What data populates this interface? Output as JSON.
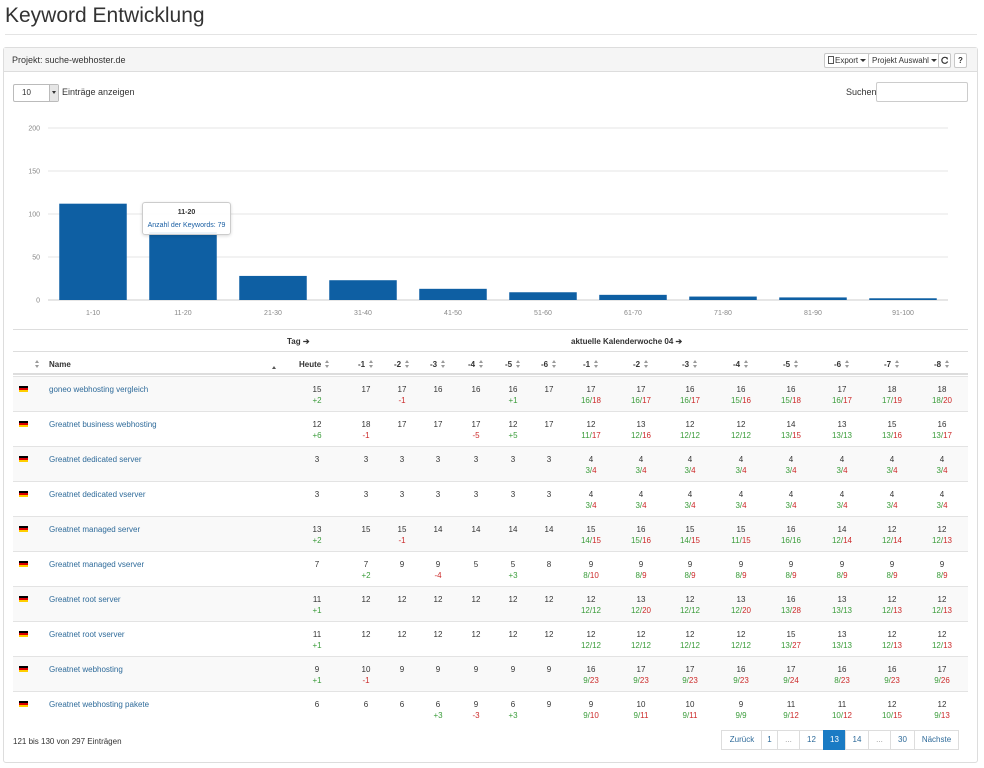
{
  "page": {
    "title": "Keyword Entwicklung"
  },
  "panel": {
    "project": "Projekt: suche-webhoster.de",
    "export_label": "Export",
    "project_select_label": "Projekt Auswahl",
    "refresh_icon": "refresh-icon",
    "help_label": "?"
  },
  "controls": {
    "length_value": "10",
    "length_label": "Einträge anzeigen",
    "search_label": "Suchen",
    "search_placeholder": ""
  },
  "colors": {
    "bar": "#0e5fa3",
    "positive": "#3a9c3a",
    "negative": "#cc2a2a",
    "link": "#2f6b9a",
    "active_page": "#1a7bc4"
  },
  "chart_data": {
    "type": "bar",
    "categories": [
      "1-10",
      "11-20",
      "21-30",
      "31-40",
      "41-50",
      "51-60",
      "61-70",
      "71-80",
      "81-90",
      "91-100"
    ],
    "values": [
      112,
      79,
      28,
      23,
      13,
      9,
      6,
      4,
      3,
      2
    ],
    "yticks": [
      0,
      50,
      100,
      150,
      200
    ],
    "ylim": [
      0,
      200
    ],
    "tooltip": {
      "category": "11-20",
      "label": "Anzahl der Keywords: 79"
    }
  },
  "table": {
    "group_day": "Tag",
    "group_week": "aktuelle Kalenderwoche 04",
    "headers": {
      "name": "Name",
      "today": "Heute",
      "days": [
        "-1",
        "-2",
        "-3",
        "-4",
        "-5",
        "-6"
      ],
      "weeks": [
        "-1",
        "-2",
        "-3",
        "-4",
        "-5",
        "-6",
        "-7",
        "-8"
      ]
    },
    "rows": [
      {
        "name": "goneo webhosting vergleich",
        "today": [
          "15",
          "+2"
        ],
        "days": [
          [
            "17",
            ""
          ],
          [
            "17",
            "-1"
          ],
          [
            "16",
            ""
          ],
          [
            "16",
            ""
          ],
          [
            "16",
            "+1"
          ],
          [
            "17",
            ""
          ]
        ],
        "weeks": [
          [
            "17",
            "16/18"
          ],
          [
            "17",
            "16/17"
          ],
          [
            "16",
            "16/17"
          ],
          [
            "16",
            "15/16"
          ],
          [
            "16",
            "15/18"
          ],
          [
            "17",
            "16/17"
          ],
          [
            "18",
            "17/19"
          ],
          [
            "18",
            "18/20"
          ]
        ]
      },
      {
        "name": "Greatnet business webhosting",
        "today": [
          "12",
          "+6"
        ],
        "days": [
          [
            "18",
            "-1"
          ],
          [
            "17",
            ""
          ],
          [
            "17",
            ""
          ],
          [
            "17",
            "-5"
          ],
          [
            "12",
            "+5"
          ],
          [
            "17",
            ""
          ]
        ],
        "weeks": [
          [
            "12",
            "11/17"
          ],
          [
            "13",
            "12/16"
          ],
          [
            "12",
            "12/12"
          ],
          [
            "12",
            "12/12"
          ],
          [
            "14",
            "13/15"
          ],
          [
            "13",
            "13/13"
          ],
          [
            "15",
            "13/16"
          ],
          [
            "16",
            "13/17"
          ]
        ]
      },
      {
        "name": "Greatnet dedicated server",
        "today": [
          "3",
          ""
        ],
        "days": [
          [
            "3",
            ""
          ],
          [
            "3",
            ""
          ],
          [
            "3",
            ""
          ],
          [
            "3",
            ""
          ],
          [
            "3",
            ""
          ],
          [
            "3",
            ""
          ]
        ],
        "weeks": [
          [
            "4",
            "3/4"
          ],
          [
            "4",
            "3/4"
          ],
          [
            "4",
            "3/4"
          ],
          [
            "4",
            "3/4"
          ],
          [
            "4",
            "3/4"
          ],
          [
            "4",
            "3/4"
          ],
          [
            "4",
            "3/4"
          ],
          [
            "4",
            "3/4"
          ]
        ]
      },
      {
        "name": "Greatnet dedicated vserver",
        "today": [
          "3",
          ""
        ],
        "days": [
          [
            "3",
            ""
          ],
          [
            "3",
            ""
          ],
          [
            "3",
            ""
          ],
          [
            "3",
            ""
          ],
          [
            "3",
            ""
          ],
          [
            "3",
            ""
          ]
        ],
        "weeks": [
          [
            "4",
            "3/4"
          ],
          [
            "4",
            "3/4"
          ],
          [
            "4",
            "3/4"
          ],
          [
            "4",
            "3/4"
          ],
          [
            "4",
            "3/4"
          ],
          [
            "4",
            "3/4"
          ],
          [
            "4",
            "3/4"
          ],
          [
            "4",
            "3/4"
          ]
        ]
      },
      {
        "name": "Greatnet managed server",
        "today": [
          "13",
          "+2"
        ],
        "days": [
          [
            "15",
            ""
          ],
          [
            "15",
            "-1"
          ],
          [
            "14",
            ""
          ],
          [
            "14",
            ""
          ],
          [
            "14",
            ""
          ],
          [
            "14",
            ""
          ]
        ],
        "weeks": [
          [
            "15",
            "14/15"
          ],
          [
            "16",
            "15/16"
          ],
          [
            "15",
            "14/15"
          ],
          [
            "15",
            "11/15"
          ],
          [
            "16",
            "16/16"
          ],
          [
            "14",
            "12/14"
          ],
          [
            "12",
            "12/14"
          ],
          [
            "12",
            "12/13"
          ]
        ]
      },
      {
        "name": "Greatnet managed vserver",
        "today": [
          "7",
          ""
        ],
        "days": [
          [
            "7",
            "+2"
          ],
          [
            "9",
            ""
          ],
          [
            "9",
            "-4"
          ],
          [
            "5",
            ""
          ],
          [
            "5",
            "+3"
          ],
          [
            "8",
            ""
          ]
        ],
        "weeks": [
          [
            "9",
            "8/10"
          ],
          [
            "9",
            "8/9"
          ],
          [
            "9",
            "8/9"
          ],
          [
            "9",
            "8/9"
          ],
          [
            "9",
            "8/9"
          ],
          [
            "9",
            "8/9"
          ],
          [
            "9",
            "8/9"
          ],
          [
            "9",
            "8/9"
          ]
        ]
      },
      {
        "name": "Greatnet root server",
        "today": [
          "11",
          "+1"
        ],
        "days": [
          [
            "12",
            ""
          ],
          [
            "12",
            ""
          ],
          [
            "12",
            ""
          ],
          [
            "12",
            ""
          ],
          [
            "12",
            ""
          ],
          [
            "12",
            ""
          ]
        ],
        "weeks": [
          [
            "12",
            "12/12"
          ],
          [
            "13",
            "12/20"
          ],
          [
            "12",
            "12/12"
          ],
          [
            "13",
            "12/20"
          ],
          [
            "16",
            "13/28"
          ],
          [
            "13",
            "13/13"
          ],
          [
            "12",
            "12/13"
          ],
          [
            "12",
            "12/13"
          ]
        ]
      },
      {
        "name": "Greatnet root vserver",
        "today": [
          "11",
          "+1"
        ],
        "days": [
          [
            "12",
            ""
          ],
          [
            "12",
            ""
          ],
          [
            "12",
            ""
          ],
          [
            "12",
            ""
          ],
          [
            "12",
            ""
          ],
          [
            "12",
            ""
          ]
        ],
        "weeks": [
          [
            "12",
            "12/12"
          ],
          [
            "12",
            "12/12"
          ],
          [
            "12",
            "12/12"
          ],
          [
            "12",
            "12/12"
          ],
          [
            "15",
            "13/27"
          ],
          [
            "13",
            "13/13"
          ],
          [
            "12",
            "12/13"
          ],
          [
            "12",
            "12/13"
          ]
        ]
      },
      {
        "name": "Greatnet webhosting",
        "today": [
          "9",
          "+1"
        ],
        "days": [
          [
            "10",
            "-1"
          ],
          [
            "9",
            ""
          ],
          [
            "9",
            ""
          ],
          [
            "9",
            ""
          ],
          [
            "9",
            ""
          ],
          [
            "9",
            ""
          ]
        ],
        "weeks": [
          [
            "16",
            "9/23"
          ],
          [
            "17",
            "9/23"
          ],
          [
            "17",
            "9/23"
          ],
          [
            "16",
            "9/23"
          ],
          [
            "17",
            "9/24"
          ],
          [
            "16",
            "8/23"
          ],
          [
            "16",
            "9/23"
          ],
          [
            "17",
            "9/26"
          ]
        ]
      },
      {
        "name": "Greatnet webhosting pakete",
        "today": [
          "6",
          ""
        ],
        "days": [
          [
            "6",
            ""
          ],
          [
            "6",
            ""
          ],
          [
            "6",
            "+3"
          ],
          [
            "9",
            "-3"
          ],
          [
            "6",
            "+3"
          ],
          [
            "9",
            ""
          ]
        ],
        "weeks": [
          [
            "9",
            "9/10"
          ],
          [
            "10",
            "9/11"
          ],
          [
            "10",
            "9/11"
          ],
          [
            "9",
            "9/9"
          ],
          [
            "11",
            "9/12"
          ],
          [
            "11",
            "10/12"
          ],
          [
            "12",
            "10/15"
          ],
          [
            "12",
            "9/13"
          ]
        ]
      }
    ]
  },
  "footer": {
    "info": "121 bis 130 von 297 Einträgen",
    "pages": [
      {
        "label": "Zurück",
        "state": "link"
      },
      {
        "label": "1",
        "state": "link"
      },
      {
        "label": "...",
        "state": "dots"
      },
      {
        "label": "12",
        "state": "link"
      },
      {
        "label": "13",
        "state": "active"
      },
      {
        "label": "14",
        "state": "link"
      },
      {
        "label": "...",
        "state": "dots"
      },
      {
        "label": "30",
        "state": "link"
      },
      {
        "label": "Nächste",
        "state": "link"
      }
    ]
  }
}
